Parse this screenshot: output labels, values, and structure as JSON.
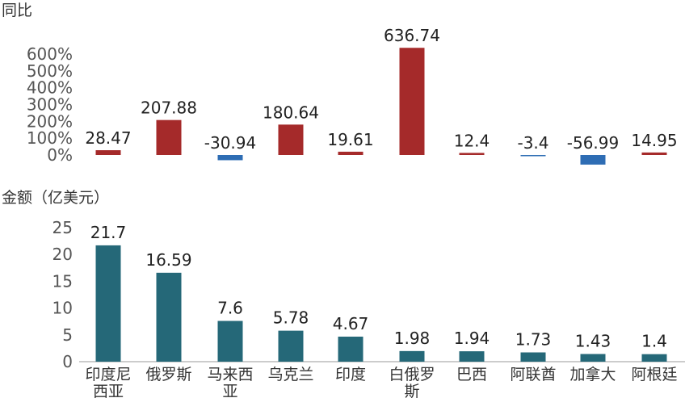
{
  "chart_data": [
    {
      "type": "bar",
      "title": "同比",
      "categories": [
        "印度尼西亚",
        "俄罗斯",
        "马来西亚",
        "乌克兰",
        "印度",
        "白俄罗斯",
        "巴西",
        "阿联酋",
        "加拿大",
        "阿根廷"
      ],
      "values": [
        28.47,
        207.88,
        -30.94,
        180.64,
        19.61,
        636.74,
        12.4,
        -3.4,
        -56.99,
        14.95
      ],
      "value_labels": [
        "28.47",
        "207.88",
        "-30.94",
        "180.64",
        "19.61",
        "636.74",
        "12.4",
        "-3.4",
        "-56.99",
        "14.95"
      ],
      "yticks": [
        "0%",
        "100%",
        "200%",
        "300%",
        "400%",
        "500%",
        "600%"
      ],
      "ylim": [
        -60,
        640
      ],
      "positive_color": "#a52a2a",
      "negative_color": "#2e6db4",
      "grid": false
    },
    {
      "type": "bar",
      "title": "金额（亿美元）",
      "categories": [
        "印度尼西亚",
        "俄罗斯",
        "马来西亚",
        "乌克兰",
        "印度",
        "白俄罗斯",
        "巴西",
        "阿联酋",
        "加拿大",
        "阿根廷"
      ],
      "category_lines": [
        [
          "印度尼",
          "西亚"
        ],
        [
          "俄罗斯"
        ],
        [
          "马来西",
          "亚"
        ],
        [
          "乌克兰"
        ],
        [
          "印度"
        ],
        [
          "白俄罗",
          "斯"
        ],
        [
          "巴西"
        ],
        [
          "阿联酋"
        ],
        [
          "加拿大"
        ],
        [
          "阿根廷"
        ]
      ],
      "values": [
        21.7,
        16.59,
        7.6,
        5.78,
        4.67,
        1.98,
        1.94,
        1.73,
        1.43,
        1.4
      ],
      "value_labels": [
        "21.7",
        "16.59",
        "7.6",
        "5.78",
        "4.67",
        "1.98",
        "1.94",
        "1.73",
        "1.43",
        "1.4"
      ],
      "yticks": [
        "0",
        "5",
        "10",
        "15",
        "20",
        "25"
      ],
      "ylim": [
        0,
        25
      ],
      "bar_color": "#256878",
      "grid": false
    }
  ]
}
